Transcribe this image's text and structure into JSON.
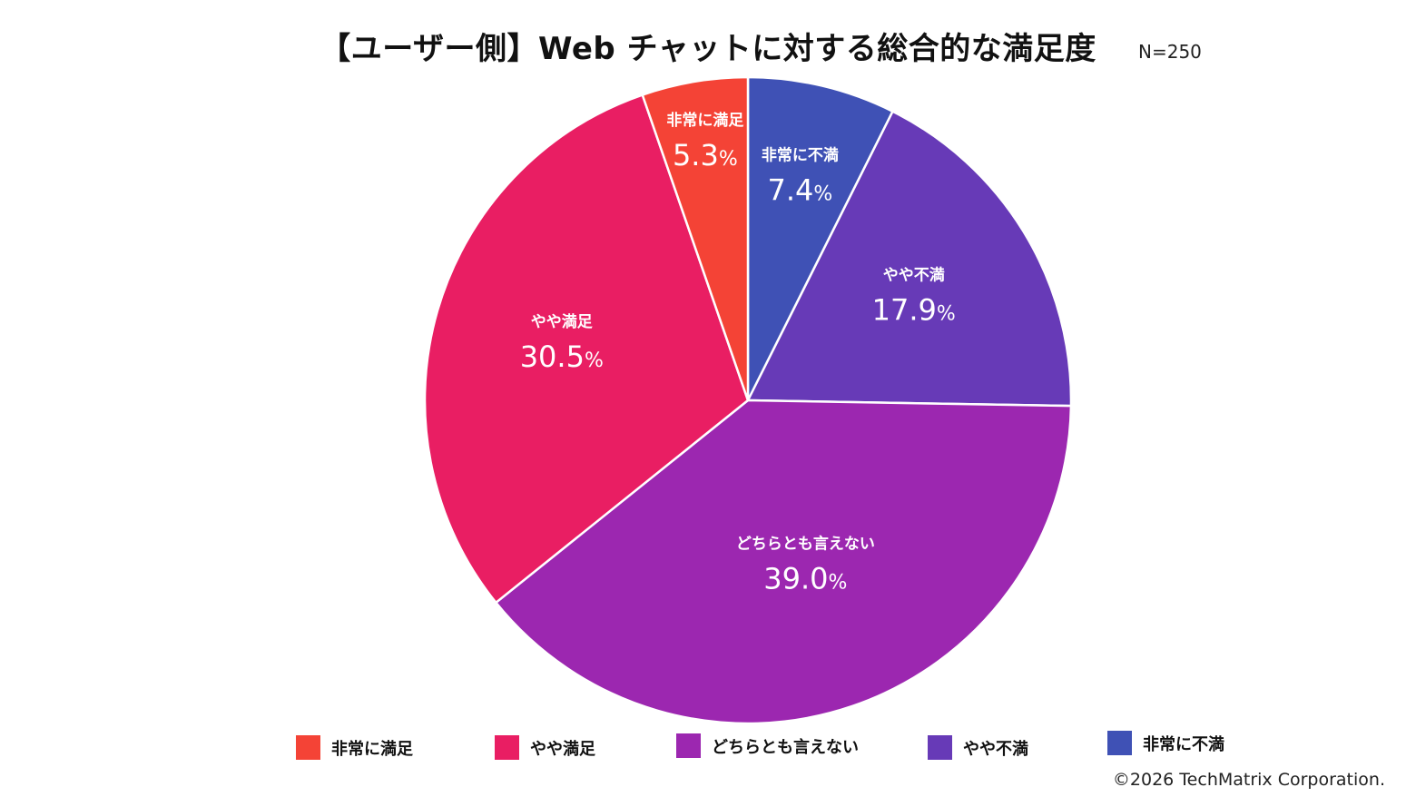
{
  "title": "【ユーザー側】Web チャットに対する総合的な満足度",
  "sample_size": "N=250",
  "copyright": "©2026 TechMatrix Corporation.",
  "percent_sign": "%",
  "chart_data": {
    "type": "pie",
    "title": "【ユーザー側】Web チャットに対する総合的な満足度",
    "slices": [
      {
        "label": "非常に不満",
        "value": 7.4,
        "display": "7.4",
        "color": "#3F51B5"
      },
      {
        "label": "やや不満",
        "value": 17.9,
        "display": "17.9",
        "color": "#673AB7"
      },
      {
        "label": "どちらとも言えない",
        "value": 39.0,
        "display": "39.0",
        "color": "#9C27B0"
      },
      {
        "label": "やや満足",
        "value": 30.5,
        "display": "30.5",
        "color": "#E91E63"
      },
      {
        "label": "非常に満足",
        "value": 5.3,
        "display": "5.3",
        "color": "#F44336"
      }
    ],
    "start_angle": "12 o'clock",
    "direction": "clockwise",
    "legend_placement": "bottom"
  },
  "legend": [
    {
      "label": "非常に満足",
      "color": "#F44336"
    },
    {
      "label": "やや満足",
      "color": "#E91E63"
    },
    {
      "label": "どちらとも言えない",
      "color": "#9C27B0"
    },
    {
      "label": "やや不満",
      "color": "#673AB7"
    },
    {
      "label": "非常に不満",
      "color": "#3F51B5"
    }
  ]
}
